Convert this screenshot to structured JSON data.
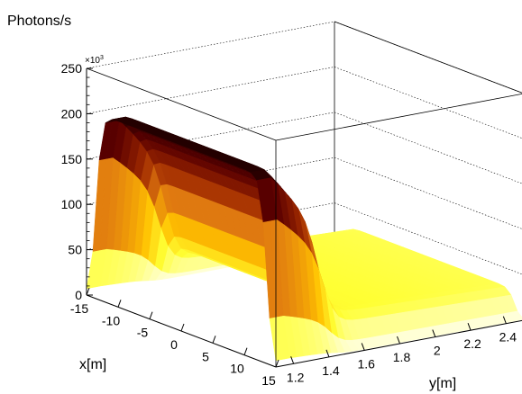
{
  "chart_data": {
    "type": "surface3d",
    "title": "",
    "zlabel": "Photons/s",
    "z_multiplier_label": "×10",
    "z_multiplier_exponent": "3",
    "xlabel": "x[m]",
    "ylabel": "y[m]",
    "x_range": [
      -15,
      15
    ],
    "y_range": [
      1.1,
      2.5
    ],
    "z_range": [
      0,
      250000
    ],
    "x_ticks": [
      "-15",
      "-10",
      "-5",
      "0",
      "5",
      "10",
      "15"
    ],
    "y_ticks": [
      "1.2",
      "1.4",
      "1.6",
      "1.8",
      "2",
      "2.2",
      "2.4"
    ],
    "z_ticks": [
      "0",
      "50",
      "100",
      "150",
      "200",
      "250"
    ],
    "grid": true,
    "colormap": [
      "#fffff0",
      "#ffff33",
      "#ffc000",
      "#e07a10",
      "#a02a00",
      "#5a0000",
      "#1a0000"
    ],
    "surface_model": {
      "y_step_center": 1.45,
      "low_level": 40000,
      "high_peak_y": 1.18,
      "high_peak_value": 205000,
      "x_plateau_halfwidth": 13.5
    }
  }
}
